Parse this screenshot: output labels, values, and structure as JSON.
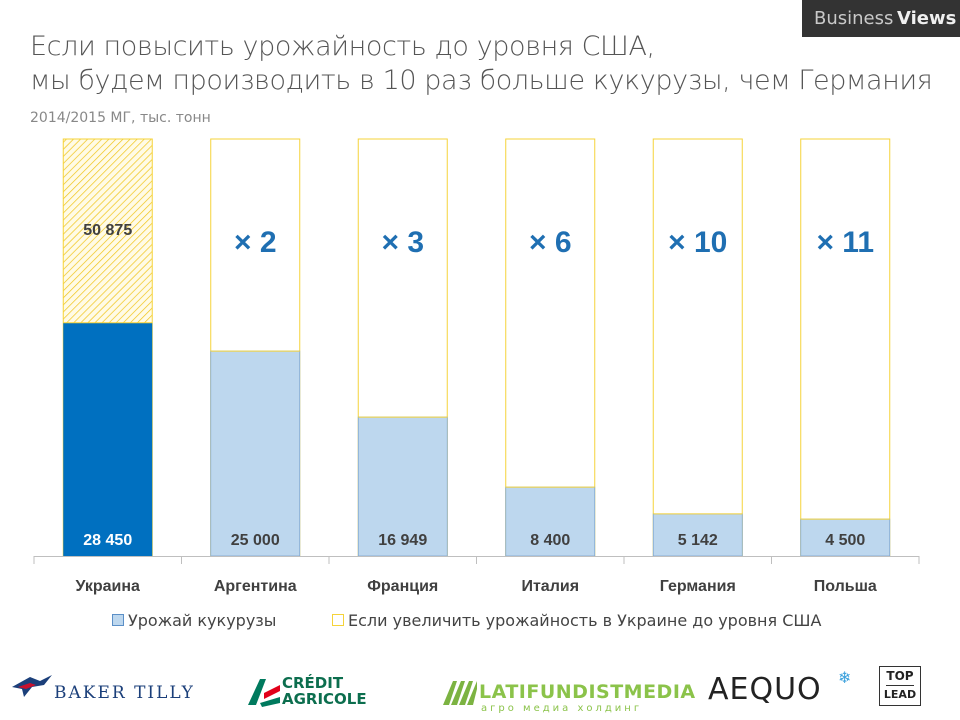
{
  "header": {
    "title_line1": "Если повысить урожайность до уровня США,",
    "title_line2": "мы будем производить в 10 раз больше кукурузы, чем Германия",
    "subtitle": "2014/2015 МГ, тыс. тонн",
    "brand_part1": "Business",
    "brand_part2": "Views"
  },
  "legend": {
    "item1": "Урожай кукурузы",
    "item2": "Если увеличить урожайность в Украине до уровня США"
  },
  "logos": {
    "baker_tilly": "BAKER TILLY",
    "credit_line1": "CRÉDIT",
    "credit_line2": "AGRICOLE",
    "latifundist": "LATIFUNDISTMEDIA",
    "latifundist_sub": "агро медиа холдинг",
    "aequo": "AEQUO",
    "toplead_line1": "TOP",
    "toplead_line2": "LEAD"
  },
  "chart_data": {
    "type": "bar",
    "categories": [
      "Украина",
      "Аргентина",
      "Франция",
      "Италия",
      "Германия",
      "Польша"
    ],
    "series": [
      {
        "name": "Урожай кукурузы",
        "values": [
          28450,
          25000,
          16949,
          8400,
          5142,
          4500
        ],
        "labels": [
          "28 450",
          "25 000",
          "16 949",
          "8 400",
          "5 142",
          "4 500"
        ]
      },
      {
        "name": "Если увеличить урожайность в Украине до уровня США",
        "values": [
          50875,
          50875,
          50875,
          50875,
          50875,
          50875
        ],
        "labels": [
          "50 875",
          "",
          "",
          "",
          "",
          ""
        ]
      }
    ],
    "multipliers": [
      "",
      "× 2",
      "× 3",
      "× 6",
      "× 10",
      "× 11"
    ],
    "ylim": [
      0,
      50875
    ],
    "colors": {
      "ukraine": "#0070c0",
      "others": "#bdd7ee",
      "potential_outline": "#f5d33a",
      "multiplier": "#1f6fb2",
      "hatch": "#f0c419"
    },
    "grid": false,
    "legend_position": "bottom"
  }
}
